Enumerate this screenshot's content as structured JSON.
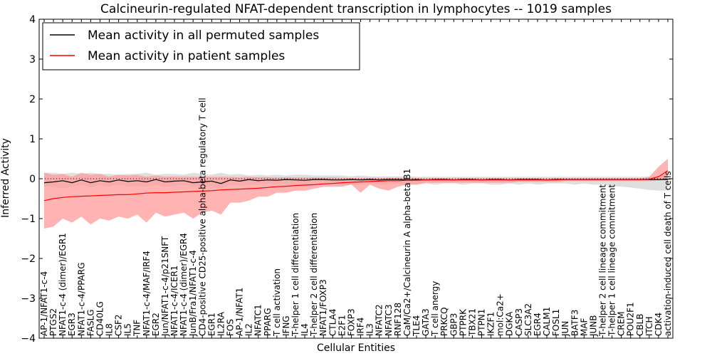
{
  "chart_data": {
    "type": "line",
    "title": "Calcineurin-regulated NFAT-dependent transcription in lymphocytes -- 1019 samples",
    "xlabel": "Cellular Entities",
    "ylabel": "Inferred Activity",
    "ylim": [
      -4,
      4
    ],
    "yticks": [
      -4,
      -3,
      -2,
      -1,
      0,
      1,
      2,
      3,
      4
    ],
    "legend_position": "top-left",
    "categories": [
      "AP-1/NFAT1-c-4",
      "PTGS2",
      "NFAT1-c-4 (dimer)/EGR1",
      "EGR3",
      "NFAT1-c-4/PPARG",
      "FASLG",
      "CD40LG",
      "IL8",
      "CSF2",
      "IL5",
      "TNF",
      "NFAT1-c-4/MAF/IRF4",
      "EGR2",
      "Jun/NFAT1-c-4/p21SNFT",
      "NFAT1-c-4/ICER1",
      "NFAT1-c-4 (dimer)/EGR4",
      "JunB/Fra1/NFAT1-c-4",
      "CD4-positive CD25-positive alpha-beta regulatory T cell",
      "EGR1",
      "IL2RA",
      "FOS",
      "AP-1/NFAT1",
      "IL2",
      "NFATC1",
      "PPARG",
      "T cell activation",
      "IFNG",
      "T-helper 1 cell differentiation",
      "IL4",
      "T-helper 2 cell differentiation",
      "NFAT1/FOXP3",
      "CTLA4",
      "E2F1",
      "FOXP3",
      "IRF4",
      "IL3",
      "NFATC2",
      "NFATC3",
      "RNF128",
      "CaM/Ca2+/Calcineurin A alpha-beta B1",
      "TLE4",
      "GATA3",
      "T cell anergy",
      "PRKCQ",
      "GBP3",
      "PTPRK",
      "TBX21",
      "PTPN1",
      "IKZF1",
      "mol:Ca2+",
      "DGKA",
      "CASP3",
      "SLC3A2",
      "EGR4",
      "CALM1",
      "FOSL1",
      "JUN",
      "BATF3",
      "MAF",
      "JUNB",
      "T-helper 2 cell lineage commitment",
      "T-helper 1 cell lineage commitment",
      "CREM",
      "POU2F1",
      "CBLB",
      "ITCH",
      "CDK4",
      "activation-induced cell death of T cells"
    ],
    "series": [
      {
        "name": "Mean activity in all permuted samples",
        "color": "#000000",
        "values": [
          -0.1,
          -0.08,
          -0.05,
          -0.1,
          -0.03,
          -0.1,
          -0.05,
          -0.08,
          -0.03,
          -0.07,
          -0.05,
          -0.08,
          -0.02,
          -0.08,
          -0.06,
          -0.05,
          -0.1,
          -0.08,
          -0.06,
          -0.12,
          -0.03,
          -0.06,
          -0.02,
          -0.05,
          -0.03,
          -0.04,
          -0.02,
          -0.03,
          -0.04,
          -0.02,
          -0.02,
          -0.03,
          -0.03,
          -0.02,
          -0.03,
          -0.02,
          -0.03,
          -0.02,
          -0.02,
          -0.03,
          -0.02,
          -0.03,
          -0.02,
          -0.02,
          -0.03,
          -0.02,
          -0.02,
          -0.03,
          -0.02,
          -0.02,
          -0.03,
          -0.02,
          -0.02,
          -0.02,
          -0.03,
          -0.02,
          -0.02,
          -0.02,
          -0.02,
          -0.02,
          -0.02,
          -0.02,
          -0.02,
          -0.02,
          -0.02,
          -0.02,
          -0.02,
          -0.02
        ],
        "lower": [
          -0.2,
          -0.18,
          -0.25,
          -0.2,
          -0.15,
          -0.22,
          -0.15,
          -0.2,
          -0.15,
          -0.2,
          -0.18,
          -0.2,
          -0.15,
          -0.2,
          -0.18,
          -0.15,
          -0.22,
          -0.2,
          -0.18,
          -0.25,
          -0.15,
          -0.18,
          -0.15,
          -0.15,
          -0.12,
          -0.15,
          -0.12,
          -0.15,
          -0.15,
          -0.12,
          -0.12,
          -0.15,
          -0.15,
          -0.15,
          -0.15,
          -0.12,
          -0.15,
          -0.15,
          -0.12,
          -0.15,
          -0.15,
          -0.12,
          -0.15,
          -0.12,
          -0.12,
          -0.15,
          -0.12,
          -0.12,
          -0.15,
          -0.15,
          -0.12,
          -0.15,
          -0.12,
          -0.15,
          -0.12,
          -0.12,
          -0.12,
          -0.15,
          -0.12,
          -0.15,
          -0.15,
          -0.18,
          -0.2,
          -0.22,
          -0.25,
          -0.28,
          -0.3,
          -0.3
        ],
        "upper": [
          0.15,
          0.15,
          0.12,
          0.15,
          0.12,
          0.15,
          0.12,
          0.12,
          0.1,
          0.12,
          0.12,
          0.15,
          0.1,
          0.12,
          0.12,
          0.1,
          0.15,
          0.12,
          0.1,
          0.15,
          0.1,
          0.12,
          0.08,
          0.1,
          0.08,
          0.1,
          0.08,
          0.1,
          0.1,
          0.08,
          0.08,
          0.08,
          0.08,
          0.06,
          0.08,
          0.06,
          0.06,
          0.06,
          0.06,
          0.06,
          0.05,
          0.05,
          0.05,
          0.05,
          0.05,
          0.05,
          0.05,
          0.05,
          0.05,
          0.05,
          0.05,
          0.05,
          0.05,
          0.05,
          0.05,
          0.05,
          0.05,
          0.05,
          0.05,
          0.05,
          0.05,
          0.05,
          0.05,
          0.05,
          0.05,
          0.05,
          0.08,
          0.1
        ]
      },
      {
        "name": "Mean activity in patient samples",
        "color": "#ff0000",
        "fill": "#ff9999",
        "values": [
          -0.55,
          -0.5,
          -0.47,
          -0.45,
          -0.44,
          -0.43,
          -0.42,
          -0.41,
          -0.4,
          -0.4,
          -0.38,
          -0.36,
          -0.35,
          -0.35,
          -0.34,
          -0.33,
          -0.32,
          -0.31,
          -0.3,
          -0.28,
          -0.27,
          -0.26,
          -0.25,
          -0.24,
          -0.22,
          -0.2,
          -0.19,
          -0.17,
          -0.16,
          -0.15,
          -0.13,
          -0.12,
          -0.1,
          -0.09,
          -0.08,
          -0.07,
          -0.06,
          -0.05,
          -0.05,
          -0.04,
          -0.04,
          -0.03,
          -0.03,
          -0.03,
          -0.03,
          -0.03,
          -0.03,
          -0.03,
          -0.03,
          -0.03,
          -0.03,
          -0.03,
          -0.03,
          -0.03,
          -0.03,
          -0.03,
          -0.02,
          -0.02,
          -0.02,
          -0.02,
          -0.02,
          -0.02,
          -0.02,
          -0.02,
          -0.02,
          -0.01,
          0.05,
          0.2
        ],
        "lower": [
          -1.25,
          -1.2,
          -1.0,
          -1.1,
          -0.95,
          -1.15,
          -1.0,
          -1.05,
          -0.95,
          -1.0,
          -0.9,
          -1.1,
          -0.85,
          -0.95,
          -0.9,
          -0.85,
          -1.0,
          -0.85,
          -0.8,
          -0.9,
          -0.6,
          -0.6,
          -0.55,
          -0.45,
          -0.45,
          -0.35,
          -0.35,
          -0.3,
          -0.3,
          -0.25,
          -0.2,
          -0.2,
          -0.2,
          -0.15,
          -0.35,
          -0.15,
          -0.25,
          -0.3,
          -0.2,
          -0.15,
          -0.15,
          -0.1,
          -0.1,
          -0.1,
          -0.1,
          -0.1,
          -0.1,
          -0.1,
          -0.1,
          -0.1,
          -0.1,
          -0.08,
          -0.08,
          -0.08,
          -0.08,
          -0.08,
          -0.06,
          -0.06,
          -0.06,
          -0.06,
          -0.06,
          -0.06,
          -0.06,
          -0.06,
          -0.06,
          -0.06,
          -0.05,
          -0.02
        ],
        "upper": [
          0.15,
          0.1,
          0.12,
          0.05,
          0.15,
          0.1,
          0.12,
          0.05,
          0.1,
          0.08,
          0.1,
          0.05,
          0.08,
          0.05,
          0.06,
          0.05,
          0.05,
          0.05,
          0.05,
          0.05,
          0.05,
          0.04,
          0.05,
          0.04,
          0.04,
          0.03,
          0.04,
          0.03,
          0.03,
          0.03,
          0.03,
          0.03,
          0.02,
          0.02,
          0.02,
          0.02,
          0.02,
          0.02,
          0.02,
          0.02,
          0.01,
          0.01,
          0.01,
          0.01,
          0.01,
          0.01,
          0.01,
          0.01,
          0.01,
          0.01,
          0.01,
          0.01,
          0.01,
          0.01,
          0.01,
          0.01,
          0.01,
          0.01,
          0.01,
          0.01,
          0.01,
          0.01,
          0.01,
          0.01,
          0.01,
          0.05,
          0.3,
          0.5
        ]
      }
    ]
  }
}
